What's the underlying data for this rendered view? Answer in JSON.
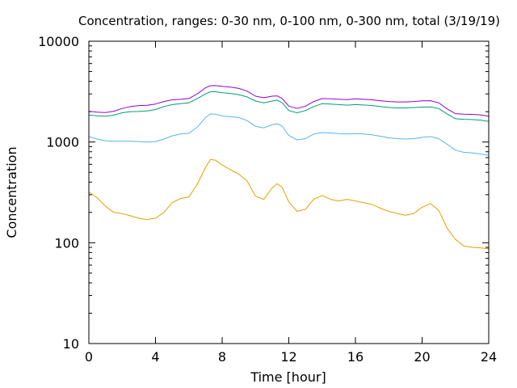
{
  "chart_data": {
    "type": "line",
    "title": "Concentration, ranges: 0-30 nm, 0-100 nm, 0-300 nm, total (3/19/19)",
    "xlabel": "Time [hour]",
    "ylabel": "Concentration",
    "xlim": [
      0,
      24
    ],
    "ylim": [
      10,
      10000
    ],
    "yscale": "log",
    "xticks": [
      0,
      4,
      8,
      12,
      16,
      20,
      24
    ],
    "xtick_labels": [
      "0",
      "4",
      "8",
      "12",
      "16",
      "20",
      "24"
    ],
    "yticks": [
      10,
      100,
      1000,
      10000
    ],
    "ytick_labels": [
      "10",
      "100",
      "1000",
      "10000"
    ],
    "grid": false,
    "legend": "none",
    "series": [
      {
        "color": "#e69f00",
        "x": [
          0,
          0.5,
          1,
          1.5,
          2,
          2.5,
          3,
          3.5,
          4,
          4.5,
          5,
          5.5,
          6,
          6.5,
          7,
          7.3,
          7.6,
          8,
          8.5,
          9,
          9.5,
          10,
          10.5,
          11,
          11.3,
          11.6,
          12,
          12.5,
          13,
          13.5,
          14,
          14.5,
          15,
          15.5,
          16,
          16.5,
          17,
          17.5,
          18,
          18.5,
          19,
          19.5,
          20,
          20.5,
          21,
          21.5,
          22,
          22.5,
          23,
          23.5,
          24
        ],
        "y": [
          320,
          280,
          230,
          200,
          195,
          185,
          175,
          170,
          175,
          200,
          250,
          275,
          285,
          380,
          560,
          670,
          660,
          590,
          530,
          480,
          410,
          290,
          270,
          350,
          385,
          355,
          255,
          205,
          215,
          270,
          295,
          270,
          260,
          270,
          260,
          250,
          240,
          220,
          205,
          195,
          188,
          195,
          225,
          245,
          210,
          140,
          108,
          93,
          90,
          89,
          87
        ]
      },
      {
        "color": "#56b4e9",
        "x": [
          0,
          0.5,
          1,
          1.5,
          2,
          2.5,
          3,
          3.5,
          4,
          4.5,
          5,
          5.5,
          6,
          6.5,
          7,
          7.3,
          7.6,
          8,
          8.5,
          9,
          9.5,
          10,
          10.5,
          11,
          11.3,
          11.6,
          12,
          12.5,
          13,
          13.5,
          14,
          14.5,
          15,
          15.5,
          16,
          16.5,
          17,
          17.5,
          18,
          18.5,
          19,
          19.5,
          20,
          20.5,
          21,
          21.5,
          22,
          22.5,
          23,
          23.5,
          24
        ],
        "y": [
          1130,
          1070,
          1030,
          1020,
          1020,
          1020,
          1010,
          1000,
          1010,
          1070,
          1150,
          1200,
          1220,
          1400,
          1750,
          1900,
          1890,
          1810,
          1780,
          1750,
          1630,
          1430,
          1380,
          1480,
          1520,
          1440,
          1160,
          1050,
          1080,
          1200,
          1240,
          1230,
          1210,
          1200,
          1210,
          1200,
          1180,
          1140,
          1100,
          1080,
          1070,
          1080,
          1110,
          1130,
          1080,
          950,
          830,
          790,
          780,
          760,
          740
        ]
      },
      {
        "color": "#009e73",
        "x": [
          0,
          0.5,
          1,
          1.5,
          2,
          2.5,
          3,
          3.5,
          4,
          4.5,
          5,
          5.5,
          6,
          6.5,
          7,
          7.3,
          7.6,
          8,
          8.5,
          9,
          9.5,
          10,
          10.5,
          11,
          11.3,
          11.6,
          12,
          12.5,
          13,
          13.5,
          14,
          14.5,
          15,
          15.5,
          16,
          16.5,
          17,
          17.5,
          18,
          18.5,
          19,
          19.5,
          20,
          20.5,
          21,
          21.5,
          22,
          22.5,
          23,
          23.5,
          24
        ],
        "y": [
          1850,
          1820,
          1800,
          1850,
          1950,
          2000,
          2010,
          2030,
          2100,
          2250,
          2350,
          2400,
          2450,
          2700,
          3000,
          3150,
          3150,
          3080,
          3030,
          2950,
          2800,
          2550,
          2450,
          2550,
          2600,
          2450,
          2050,
          1950,
          2050,
          2250,
          2400,
          2380,
          2350,
          2320,
          2350,
          2330,
          2300,
          2250,
          2200,
          2180,
          2180,
          2200,
          2220,
          2230,
          2150,
          1900,
          1700,
          1680,
          1670,
          1650,
          1600
        ]
      },
      {
        "color": "#9400d3",
        "x": [
          0,
          0.5,
          1,
          1.5,
          2,
          2.5,
          3,
          3.5,
          4,
          4.5,
          5,
          5.5,
          6,
          6.5,
          7,
          7.3,
          7.6,
          8,
          8.5,
          9,
          9.5,
          10,
          10.5,
          11,
          11.3,
          11.6,
          12,
          12.5,
          13,
          13.5,
          14,
          14.5,
          15,
          15.5,
          16,
          16.5,
          17,
          17.5,
          18,
          18.5,
          19,
          19.5,
          20,
          20.5,
          21,
          21.5,
          22,
          22.5,
          23,
          23.5,
          24
        ],
        "y": [
          2020,
          1980,
          1960,
          2020,
          2150,
          2250,
          2300,
          2310,
          2380,
          2520,
          2620,
          2650,
          2700,
          3000,
          3450,
          3620,
          3630,
          3560,
          3500,
          3400,
          3200,
          2850,
          2750,
          2850,
          2870,
          2700,
          2270,
          2150,
          2270,
          2520,
          2700,
          2680,
          2660,
          2630,
          2680,
          2650,
          2620,
          2570,
          2520,
          2500,
          2500,
          2520,
          2560,
          2570,
          2450,
          2130,
          1910,
          1890,
          1880,
          1860,
          1800
        ]
      }
    ]
  }
}
